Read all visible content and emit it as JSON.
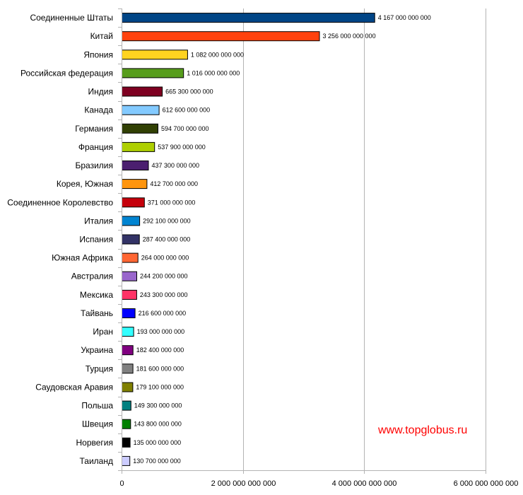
{
  "chart_data": {
    "type": "bar",
    "orientation": "horizontal",
    "categories": [
      "Соединенные Штаты",
      "Китай",
      "Япония",
      "Российская федерация",
      "Индия",
      "Канада",
      "Германия",
      "Франция",
      "Бразилия",
      "Корея, Южная",
      "Соединенное Королевство",
      "Италия",
      "Испания",
      "Южная Африка",
      "Австралия",
      "Мексика",
      "Тайвань",
      "Иран",
      "Украина",
      "Турция",
      "Саудовская Аравия",
      "Польша",
      "Швеция",
      "Норвегия",
      "Таиланд"
    ],
    "values": [
      4167000000000,
      3256000000000,
      1082000000000,
      1016000000000,
      665300000000,
      612600000000,
      594700000000,
      537900000000,
      437300000000,
      412700000000,
      371000000000,
      292100000000,
      287400000000,
      264000000000,
      244200000000,
      243300000000,
      216600000000,
      193000000000,
      182400000000,
      181600000000,
      179100000000,
      149300000000,
      143800000000,
      135000000000,
      130700000000
    ],
    "value_labels": [
      "4 167 000 000 000",
      "3 256 000 000 000",
      "1 082 000 000 000",
      "1 016 000 000 000",
      "665 300 000 000",
      "612 600 000 000",
      "594 700 000 000",
      "537 900 000 000",
      "437 300 000 000",
      "412 700 000 000",
      "371 000 000 000",
      "292 100 000 000",
      "287 400 000 000",
      "264 000 000 000",
      "244 200 000 000",
      "243 300 000 000",
      "216 600 000 000",
      "193 000 000 000",
      "182 400 000 000",
      "181 600 000 000",
      "179 100 000 000",
      "149 300 000 000",
      "143 800 000 000",
      "135 000 000 000",
      "130 700 000 000"
    ],
    "colors": [
      "#004586",
      "#ff420e",
      "#ffd320",
      "#579d1c",
      "#7e0021",
      "#83caff",
      "#314004",
      "#aecf00",
      "#4b1f6f",
      "#ff950e",
      "#c5000b",
      "#0084d1",
      "#333366",
      "#ff6633",
      "#9966cc",
      "#ff3366",
      "#0000ff",
      "#33ffff",
      "#800080",
      "#808080",
      "#808000",
      "#008080",
      "#008000",
      "#000000",
      "#ccccff"
    ],
    "xlim": [
      0,
      6000000000000
    ],
    "x_ticks": [
      0,
      2000000000000,
      4000000000000,
      6000000000000
    ],
    "x_tick_labels": [
      "0",
      "2 000 000 000 000",
      "4 000 000 000 000",
      "6 000 000 000 000"
    ],
    "grid": "vertical",
    "legend": "none",
    "title": "",
    "xlabel": "",
    "ylabel": ""
  },
  "watermark": {
    "text": "www.topglobus.ru",
    "color": "#ff0000"
  }
}
